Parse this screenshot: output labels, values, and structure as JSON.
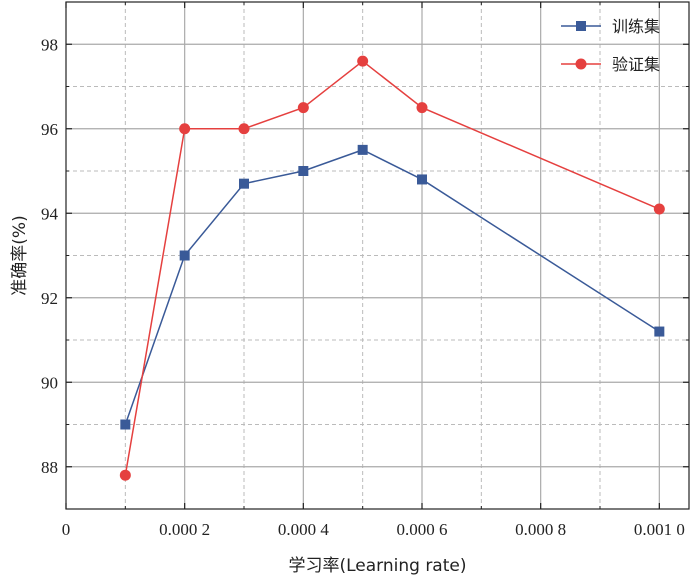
{
  "chart_data": {
    "type": "line",
    "title": "",
    "xlabel": "学习率(Learning rate)",
    "ylabel": "准确率(%)",
    "xlim": [
      0,
      0.00105
    ],
    "ylim": [
      87,
      99
    ],
    "x_ticks": [
      0,
      0.0002,
      0.0004,
      0.0006,
      0.0008,
      0.001
    ],
    "x_tick_labels": [
      "0",
      "0.000 2",
      "0.000 4",
      "0.000 6",
      "0.000 8",
      "0.001 0"
    ],
    "y_ticks": [
      88,
      90,
      92,
      94,
      96,
      98
    ],
    "y_tick_labels": [
      "88",
      "90",
      "92",
      "94",
      "96",
      "98"
    ],
    "grid": true,
    "legend_position": "top-right",
    "x": [
      0.0001,
      0.0002,
      0.0003,
      0.0004,
      0.0005,
      0.0006,
      0.001
    ],
    "series": [
      {
        "name": "训练集",
        "color": "#3a5a98",
        "marker": "square",
        "values": [
          89.0,
          93.0,
          94.7,
          95.0,
          95.5,
          94.8,
          91.2
        ]
      },
      {
        "name": "验证集",
        "color": "#e5403f",
        "marker": "circle",
        "values": [
          87.8,
          96.0,
          96.0,
          96.5,
          97.6,
          96.5,
          94.1
        ]
      }
    ]
  }
}
